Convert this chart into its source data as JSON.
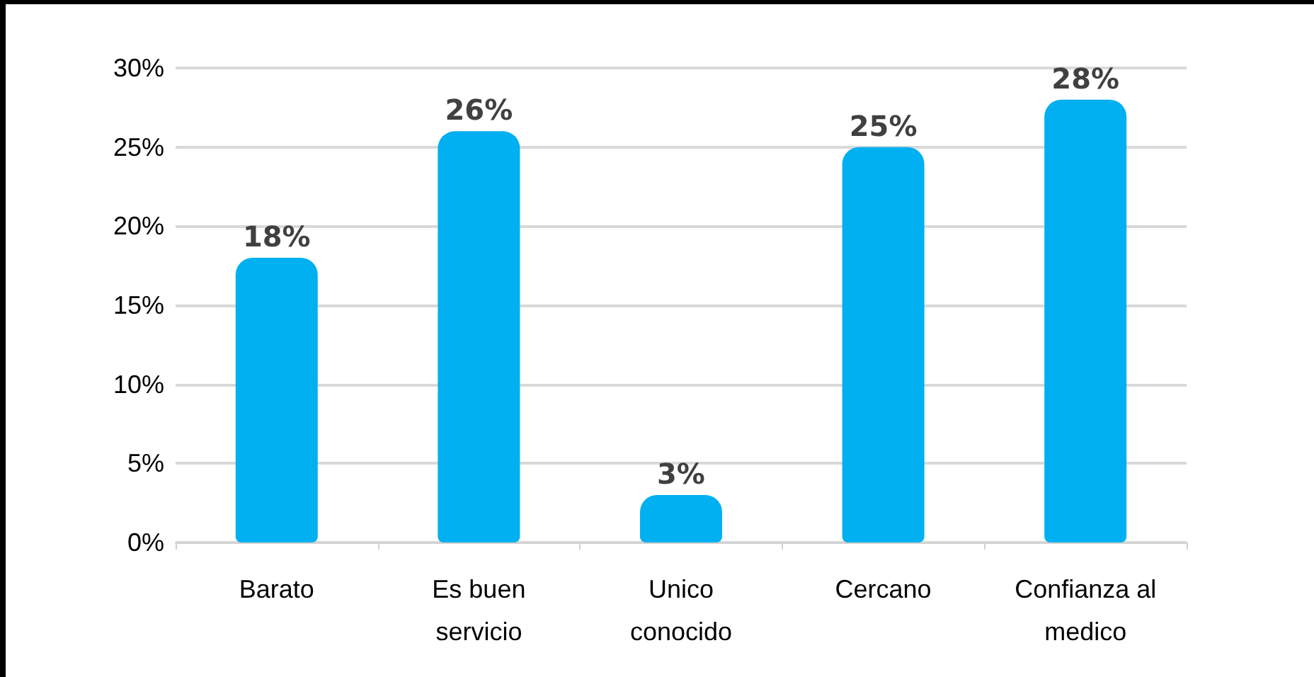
{
  "chart_data": {
    "type": "bar",
    "categories": [
      "Barato",
      "Es buen\nservicio",
      "Unico\nconocido",
      "Cercano",
      "Confianza al\nmedico"
    ],
    "values": [
      18,
      26,
      3,
      25,
      28
    ],
    "color": "#00b0f0",
    "value_labels": [
      "18%",
      "26%",
      "3%",
      "25%",
      "28%"
    ],
    "ylim": [
      0,
      30
    ],
    "yticks": [
      {
        "value": 0,
        "label": "0%"
      },
      {
        "value": 5,
        "label": "5%"
      },
      {
        "value": 10,
        "label": "10%"
      },
      {
        "value": 15,
        "label": "15%"
      },
      {
        "value": 20,
        "label": "20%"
      },
      {
        "value": 25,
        "label": "25%"
      },
      {
        "value": 30,
        "label": "30%"
      }
    ],
    "grid": "y"
  }
}
